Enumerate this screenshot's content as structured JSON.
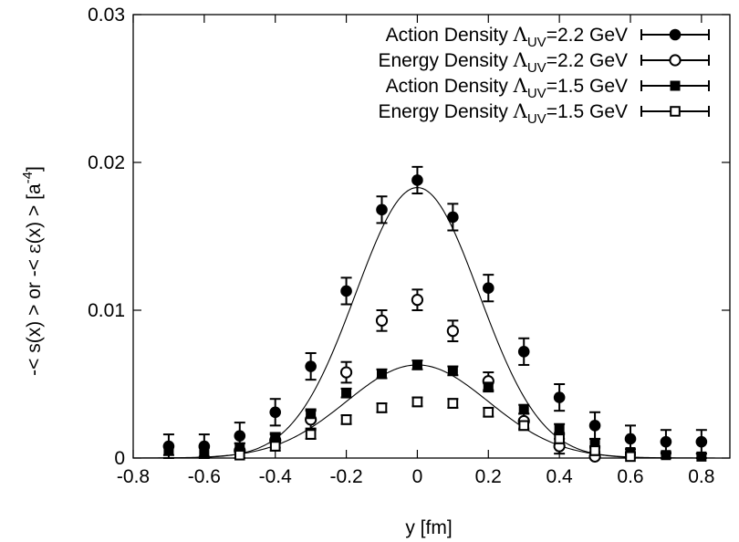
{
  "chart_data": {
    "type": "scatter",
    "xlabel": "y [fm]",
    "ylabel": {
      "part1": "-< s(x) >  or  -< ",
      "epsilon": "ε",
      "part2": "(x) >   [a",
      "exp": "-4",
      "part3": "]"
    },
    "xlim": [
      -0.8,
      0.88
    ],
    "ylim": [
      0,
      0.03
    ],
    "x_ticks": [
      "-0.8",
      "-0.6",
      "-0.4",
      "-0.2",
      "0",
      "0.2",
      "0.4",
      "0.6",
      "0.8"
    ],
    "x_tick_values": [
      -0.8,
      -0.6,
      -0.4,
      -0.2,
      0,
      0.2,
      0.4,
      0.6,
      0.8
    ],
    "y_ticks": [
      "0",
      "0.01",
      "0.02",
      "0.03"
    ],
    "y_tick_values": [
      0,
      0.01,
      0.02,
      0.03
    ],
    "grid": false,
    "legend_position": "top-right",
    "series": [
      {
        "name": "Action Density Λ_UV=2.2 GeV",
        "label_prefix": "Action Density ",
        "label_lambda": "Λ",
        "label_sub": "UV",
        "label_suffix": "=2.2 GeV",
        "marker": "filled-circle",
        "x": [
          -0.7,
          -0.6,
          -0.5,
          -0.4,
          -0.3,
          -0.2,
          -0.1,
          0,
          0.1,
          0.2,
          0.3,
          0.4,
          0.5,
          0.6,
          0.7,
          0.8
        ],
        "y": [
          0.0008,
          0.0008,
          0.0015,
          0.0031,
          0.0062,
          0.0113,
          0.0168,
          0.0188,
          0.0163,
          0.0115,
          0.0072,
          0.0041,
          0.0022,
          0.0013,
          0.0011,
          0.0011
        ],
        "err": [
          0.0008,
          0.0008,
          0.0009,
          0.0009,
          0.0009,
          0.0009,
          0.0009,
          0.0009,
          0.0009,
          0.0009,
          0.0009,
          0.0009,
          0.0009,
          0.0009,
          0.0008,
          0.0008
        ]
      },
      {
        "name": "Energy Density Λ_UV=2.2 GeV",
        "label_prefix": "Energy Density ",
        "label_lambda": "Λ",
        "label_sub": "UV",
        "label_suffix": "=2.2 GeV",
        "marker": "open-circle",
        "x": [
          -0.5,
          -0.4,
          -0.3,
          -0.2,
          -0.1,
          0,
          0.1,
          0.2,
          0.3,
          0.4,
          0.5
        ],
        "y": [
          0.0005,
          0.0012,
          0.0026,
          0.0058,
          0.0093,
          0.0107,
          0.0086,
          0.0052,
          0.0025,
          0.0008,
          0.0001
        ],
        "err": [
          0.0005,
          0.0005,
          0.0006,
          0.0007,
          0.0007,
          0.0007,
          0.0007,
          0.0006,
          0.0005,
          0.0005,
          0.0003
        ]
      },
      {
        "name": "Action Density Λ_UV=1.5 GeV",
        "label_prefix": "Action Density ",
        "label_lambda": "Λ",
        "label_sub": "UV",
        "label_suffix": "=1.5 GeV",
        "marker": "filled-square",
        "x": [
          -0.7,
          -0.6,
          -0.5,
          -0.4,
          -0.3,
          -0.2,
          -0.1,
          0,
          0.1,
          0.2,
          0.3,
          0.4,
          0.5,
          0.6,
          0.7,
          0.8
        ],
        "y": [
          0.0005,
          0.0004,
          0.0007,
          0.0013,
          0.003,
          0.0044,
          0.0057,
          0.0063,
          0.0059,
          0.0048,
          0.0033,
          0.002,
          0.001,
          0.0004,
          0.0002,
          0.0001
        ],
        "err": [
          0.0003,
          0.0003,
          0.0003,
          0.0003,
          0.0003,
          0.0003,
          0.0003,
          0.0003,
          0.0003,
          0.0003,
          0.0003,
          0.0003,
          0.0003,
          0.0002,
          0.0002,
          0.0002
        ]
      },
      {
        "name": "Energy Density Λ_UV=1.5 GeV",
        "label_prefix": "Energy Density ",
        "label_lambda": "Λ",
        "label_sub": "UV",
        "label_suffix": "=1.5 GeV",
        "marker": "open-square",
        "x": [
          -0.5,
          -0.4,
          -0.3,
          -0.2,
          -0.1,
          0,
          0.1,
          0.2,
          0.3,
          0.4,
          0.5,
          0.6
        ],
        "y": [
          0.0002,
          0.0008,
          0.0016,
          0.0026,
          0.0034,
          0.0038,
          0.0037,
          0.0031,
          0.0022,
          0.0013,
          0.0005,
          0.0001
        ],
        "err": [
          0.0003,
          0.0003,
          0.0003,
          0.0003,
          0.0003,
          0.0003,
          0.0003,
          0.0003,
          0.0003,
          0.0003,
          0.0003,
          0.0002
        ]
      }
    ],
    "fits": [
      {
        "type": "gaussian",
        "amplitude": 0.0183,
        "sigma": 0.174
      },
      {
        "type": "gaussian",
        "amplitude": 0.0063,
        "sigma": 0.2
      }
    ]
  }
}
